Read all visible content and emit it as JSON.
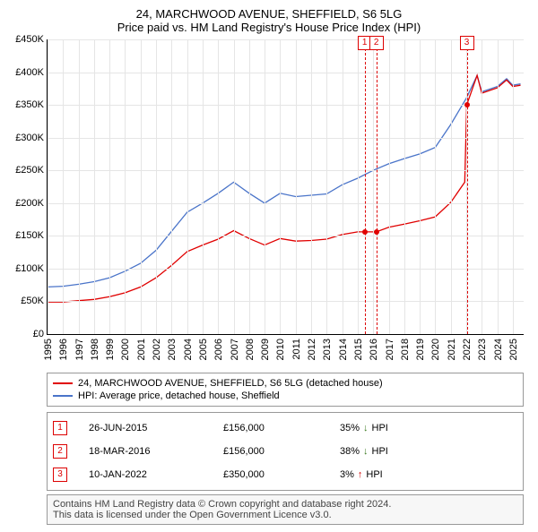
{
  "title_line1": "24, MARCHWOOD AVENUE, SHEFFIELD, S6 5LG",
  "title_line2": "Price paid vs. HM Land Registry's House Price Index (HPI)",
  "chart": {
    "type": "line",
    "ylim": [
      0,
      450000
    ],
    "ytick_step": 50000,
    "yticks": [
      "£0",
      "£50K",
      "£100K",
      "£150K",
      "£200K",
      "£250K",
      "£300K",
      "£350K",
      "£400K",
      "£450K"
    ],
    "xlim": [
      1995,
      2025.7
    ],
    "xticks": [
      1995,
      1996,
      1997,
      1998,
      1999,
      2000,
      2001,
      2002,
      2003,
      2004,
      2005,
      2006,
      2007,
      2008,
      2009,
      2010,
      2011,
      2012,
      2013,
      2014,
      2015,
      2016,
      2017,
      2018,
      2019,
      2020,
      2021,
      2022,
      2023,
      2024,
      2025
    ],
    "grid_color": "#e5e5e5",
    "background_color": "#ffffff",
    "series": [
      {
        "name": "HPI: Average price, detached house, Sheffield",
        "color": "#4a74c9",
        "width": 1.3,
        "points": [
          [
            1995,
            72000
          ],
          [
            1996,
            73000
          ],
          [
            1997,
            76000
          ],
          [
            1998,
            80000
          ],
          [
            1999,
            86000
          ],
          [
            2000,
            96000
          ],
          [
            2001,
            108000
          ],
          [
            2002,
            128000
          ],
          [
            2003,
            157000
          ],
          [
            2004,
            186000
          ],
          [
            2005,
            200000
          ],
          [
            2006,
            215000
          ],
          [
            2007,
            232000
          ],
          [
            2008,
            215000
          ],
          [
            2009,
            200000
          ],
          [
            2010,
            215000
          ],
          [
            2011,
            210000
          ],
          [
            2012,
            212000
          ],
          [
            2013,
            214000
          ],
          [
            2014,
            228000
          ],
          [
            2015,
            238000
          ],
          [
            2016,
            250000
          ],
          [
            2017,
            260000
          ],
          [
            2018,
            268000
          ],
          [
            2019,
            275000
          ],
          [
            2020,
            285000
          ],
          [
            2021,
            320000
          ],
          [
            2022,
            360000
          ],
          [
            2022.7,
            395000
          ],
          [
            2023,
            370000
          ],
          [
            2024,
            378000
          ],
          [
            2024.6,
            390000
          ],
          [
            2025,
            380000
          ],
          [
            2025.5,
            382000
          ]
        ]
      },
      {
        "name": "24, MARCHWOOD AVENUE, SHEFFIELD, S6 5LG (detached house)",
        "color": "#e00000",
        "width": 1.3,
        "points": [
          [
            1995,
            49000
          ],
          [
            1996,
            49000
          ],
          [
            1997,
            51000
          ],
          [
            1998,
            53000
          ],
          [
            1999,
            57000
          ],
          [
            2000,
            63000
          ],
          [
            2001,
            72000
          ],
          [
            2002,
            86000
          ],
          [
            2003,
            105000
          ],
          [
            2004,
            126000
          ],
          [
            2005,
            136000
          ],
          [
            2006,
            145000
          ],
          [
            2007,
            158000
          ],
          [
            2008,
            146000
          ],
          [
            2009,
            136000
          ],
          [
            2010,
            146000
          ],
          [
            2011,
            142000
          ],
          [
            2012,
            143000
          ],
          [
            2013,
            145000
          ],
          [
            2014,
            152000
          ],
          [
            2015,
            156000
          ],
          [
            2015.45,
            156000
          ],
          [
            2016,
            156000
          ],
          [
            2016.2,
            156000
          ],
          [
            2017,
            163000
          ],
          [
            2018,
            168000
          ],
          [
            2019,
            173000
          ],
          [
            2020,
            179000
          ],
          [
            2021,
            201000
          ],
          [
            2021.9,
            232000
          ],
          [
            2022.03,
            350000
          ],
          [
            2022.7,
            395000
          ],
          [
            2023,
            368000
          ],
          [
            2024,
            376000
          ],
          [
            2024.6,
            388000
          ],
          [
            2025,
            378000
          ],
          [
            2025.5,
            380000
          ]
        ]
      }
    ],
    "markers": [
      {
        "n": "1",
        "x": 2015.45,
        "y": 156000
      },
      {
        "n": "2",
        "x": 2016.2,
        "y": 156000
      },
      {
        "n": "3",
        "x": 2022.03,
        "y": 350000
      }
    ]
  },
  "legend": [
    {
      "color": "#e00000",
      "label": "24, MARCHWOOD AVENUE, SHEFFIELD, S6 5LG (detached house)"
    },
    {
      "color": "#4a74c9",
      "label": "HPI: Average price, detached house, Sheffield"
    }
  ],
  "sales": [
    {
      "n": "1",
      "date": "26-JUN-2015",
      "price": "£156,000",
      "pct": "35%",
      "dir": "down",
      "dir_color": "#3a7a1f",
      "vs": "HPI"
    },
    {
      "n": "2",
      "date": "18-MAR-2016",
      "price": "£156,000",
      "pct": "38%",
      "dir": "down",
      "dir_color": "#3a7a1f",
      "vs": "HPI"
    },
    {
      "n": "3",
      "date": "10-JAN-2022",
      "price": "£350,000",
      "pct": "3%",
      "dir": "up",
      "dir_color": "#d00000",
      "vs": "HPI"
    }
  ],
  "footer1": "Contains HM Land Registry data © Crown copyright and database right 2024.",
  "footer2": "This data is licensed under the Open Government Licence v3.0."
}
